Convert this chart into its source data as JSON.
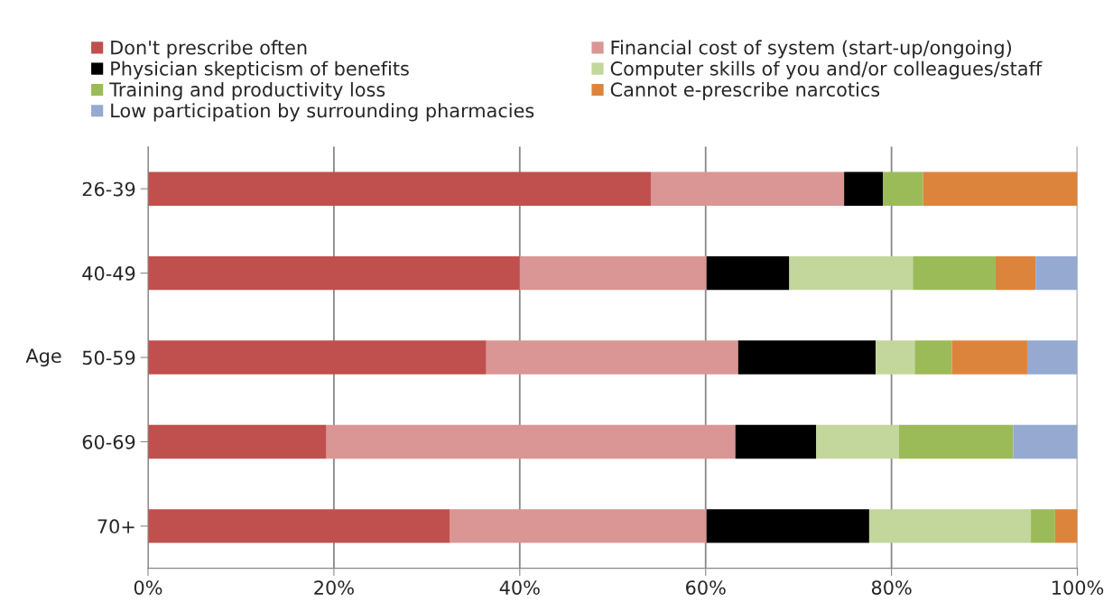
{
  "chart_data": {
    "type": "bar",
    "orientation": "horizontal",
    "stacked": true,
    "ylabel": "Age",
    "categories": [
      "26-39",
      "40-49",
      "50-59",
      "60-69",
      "70+"
    ],
    "series": [
      {
        "name": "Don't prescribe often",
        "color": "#c0504d",
        "values": [
          54.1,
          40.0,
          36.4,
          19.2,
          32.5
        ]
      },
      {
        "name": "Financial cost of system (start-up/ongoing)",
        "color": "#d99694",
        "values": [
          20.8,
          20.1,
          27.1,
          44.0,
          27.6
        ]
      },
      {
        "name": "Physician skepticism of benefits",
        "color": "#000000",
        "values": [
          4.2,
          8.9,
          14.8,
          8.7,
          17.5
        ]
      },
      {
        "name": "Computer skills of you and/or colleagues/staff",
        "color": "#c3d69b",
        "values": [
          0,
          13.3,
          4.2,
          8.9,
          17.4
        ]
      },
      {
        "name": "Training and productivity loss",
        "color": "#9bbb59",
        "values": [
          4.3,
          8.9,
          4.0,
          12.3,
          2.6
        ]
      },
      {
        "name": "Cannot e-prescribe narcotics",
        "color": "#dd843c",
        "values": [
          16.6,
          4.3,
          8.1,
          0,
          2.4
        ]
      },
      {
        "name": "Low participation by surrounding pharmacies",
        "color": "#95a9d1",
        "values": [
          0,
          4.5,
          5.4,
          6.9,
          0
        ]
      }
    ],
    "xlim": [
      0,
      100
    ],
    "xticks": [
      {
        "value": 0,
        "label": "0%"
      },
      {
        "value": 20,
        "label": "20%"
      },
      {
        "value": 40,
        "label": "40%"
      },
      {
        "value": 60,
        "label": "60%"
      },
      {
        "value": 80,
        "label": "80%"
      },
      {
        "value": 100,
        "label": "100%"
      }
    ],
    "grid": "x",
    "legend": "top"
  }
}
